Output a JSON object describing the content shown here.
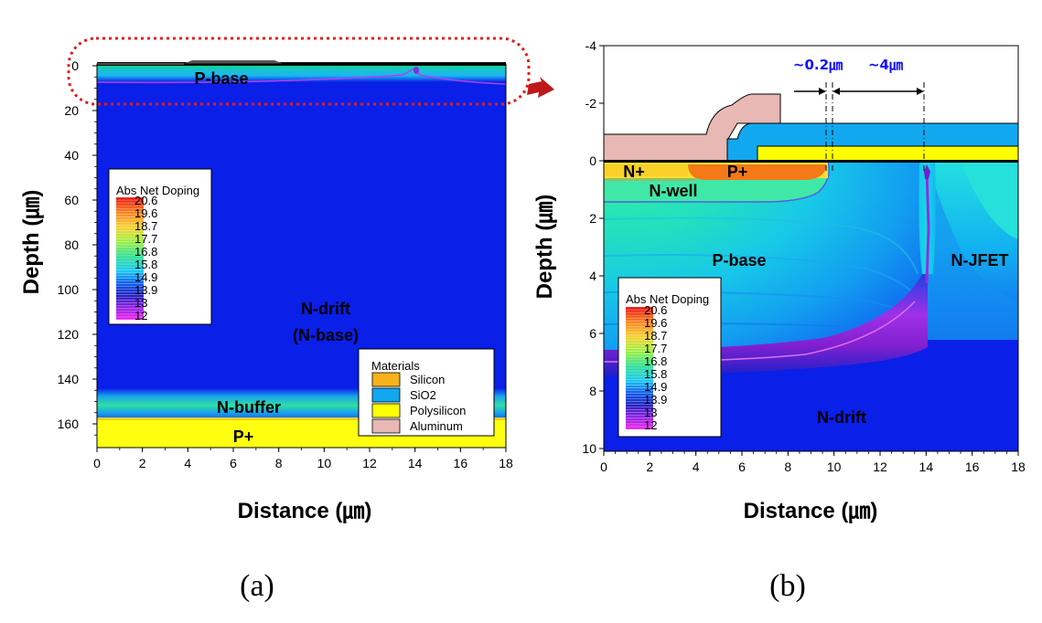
{
  "colors": {
    "n_drift": "#0a1fe8",
    "silicon": "#f7b21b",
    "sio2": "#12a8f0",
    "polysilicon": "#ffff00",
    "aluminum": "#e8b8b4",
    "highlight": "#e02020",
    "dimension": "#1010ff"
  },
  "panel_a": {
    "caption": "(a)",
    "x_axis": {
      "title": "Distance (㎛)",
      "ticks": [
        "0",
        "2",
        "4",
        "6",
        "8",
        "10",
        "12",
        "14",
        "16",
        "18"
      ]
    },
    "y_axis": {
      "title": "Depth (㎛)",
      "ticks": [
        "0",
        "20",
        "40",
        "60",
        "80",
        "100",
        "120",
        "140",
        "160"
      ]
    },
    "regions": {
      "p_base": "P-base",
      "n_drift_line1": "N-drift",
      "n_drift_line2": "(N-base)",
      "n_buffer": "N-buffer",
      "p_plus": "P+"
    },
    "doping_legend": {
      "title": "Abs Net Doping",
      "values": [
        "20.6",
        "19.6",
        "18.7",
        "17.7",
        "16.8",
        "15.8",
        "14.9",
        "13.9",
        "13",
        "12"
      ]
    },
    "materials_legend": {
      "title": "Materials",
      "items": [
        {
          "label": "Silicon",
          "color": "#f7b21b"
        },
        {
          "label": "SiO2",
          "color": "#12a8f0"
        },
        {
          "label": "Polysilicon",
          "color": "#ffff00"
        },
        {
          "label": "Aluminum",
          "color": "#e8b8b4"
        }
      ]
    }
  },
  "panel_b": {
    "caption": "(b)",
    "x_axis": {
      "title": "Distance (㎛)",
      "ticks": [
        "0",
        "2",
        "4",
        "6",
        "8",
        "10",
        "12",
        "14",
        "16",
        "18"
      ]
    },
    "y_axis": {
      "title": "Depth (㎛)",
      "ticks": [
        "-4",
        "-2",
        "0",
        "2",
        "4",
        "6",
        "8",
        "10"
      ]
    },
    "regions": {
      "n_plus": "N+",
      "p_plus": "P+",
      "n_well": "N-well",
      "p_base": "P-base",
      "n_jfet": "N-JFET",
      "n_drift": "N-drift"
    },
    "dimensions": {
      "gap": "~0.2㎛",
      "jfet_width": "~4㎛"
    },
    "doping_legend": {
      "title": "Abs Net Doping",
      "values": [
        "20.6",
        "19.6",
        "18.7",
        "17.7",
        "16.8",
        "15.8",
        "14.9",
        "13.9",
        "13",
        "12"
      ]
    }
  }
}
